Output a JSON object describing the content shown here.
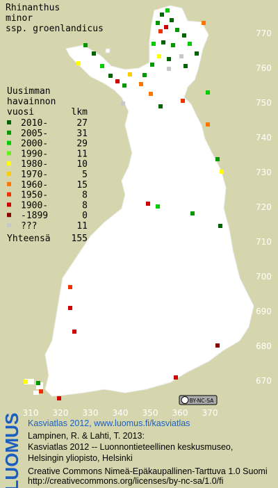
{
  "title": [
    "Rhinanthus",
    "minor",
    "ssp. groenlandicus"
  ],
  "legend": {
    "header": [
      "Uusimman",
      "havainnon",
      "vuosi"
    ],
    "count_header": "lkm",
    "rows": [
      {
        "label": "2010-",
        "count": 27,
        "color": "#006400"
      },
      {
        "label": "2005-",
        "count": 31,
        "color": "#009a00"
      },
      {
        "label": "2000-",
        "count": 29,
        "color": "#00cc00"
      },
      {
        "label": "1990-",
        "count": 11,
        "color": "#66ee22"
      },
      {
        "label": "1980-",
        "count": 10,
        "color": "#ffff00"
      },
      {
        "label": "1970-",
        "count": 5,
        "color": "#ffcc00"
      },
      {
        "label": "1960-",
        "count": 15,
        "color": "#ff7700"
      },
      {
        "label": "1950-",
        "count": 8,
        "color": "#ee3300"
      },
      {
        "label": "1900-",
        "count": 8,
        "color": "#cc0000"
      },
      {
        "label": "-1899",
        "count": 0,
        "color": "#880000"
      },
      {
        "label": "???",
        "count": 11,
        "color": "#c8c8c8"
      }
    ],
    "total_label": "Yhteensä",
    "total": 155
  },
  "x_labels": [
    310,
    320,
    330,
    340,
    350,
    360,
    370
  ],
  "y_labels": [
    770,
    760,
    750,
    740,
    730,
    720,
    710,
    700,
    690,
    680,
    670
  ],
  "license_badge": "BY-NC-SA",
  "footer": {
    "logo": "LUOMUS",
    "link": "Kasviatlas 2012, www.luomus.fi/kasviatlas",
    "citation": [
      "Lampinen, R. & Lahti, T. 2013:",
      "Kasviatlas 2012 -- Luonnontieteellinen keskusmuseo,",
      "Helsingin yliopisto, Helsinki"
    ],
    "license": [
      "Creative Commons Nimeä-Epäkaupallinen-Tarttuva 1.0 Suomi",
      "http://creativecommons.org/licenses/by-nc-sa/1.0/fi"
    ]
  }
}
